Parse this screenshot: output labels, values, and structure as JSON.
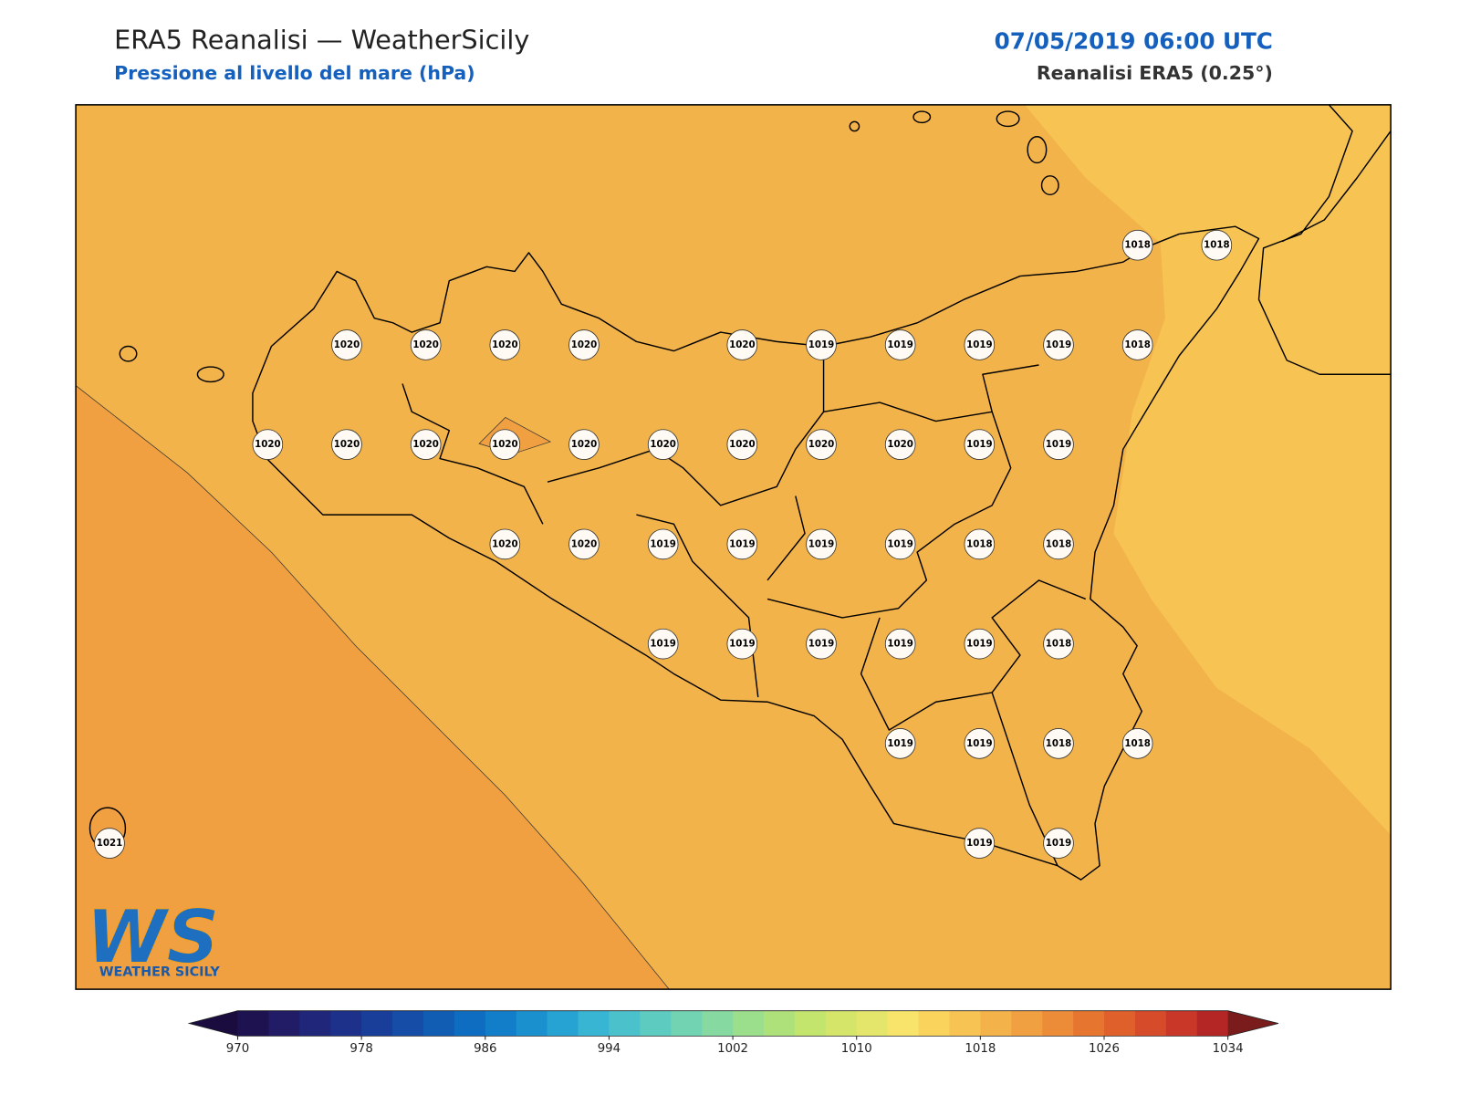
{
  "header": {
    "title": "ERA5 Reanalisi — WeatherSicily",
    "subtitle": "Pressione al livello del mare (hPa)",
    "datetime": "07/05/2019 06:00 UTC",
    "source": "Reanalisi ERA5 (0.25°)"
  },
  "stations": [
    1018,
    1018,
    1020,
    1020,
    1020,
    1020,
    1020,
    1019,
    1019,
    1019,
    1019,
    1018,
    1020,
    1020,
    1020,
    1020,
    1020,
    1020,
    1020,
    1020,
    1020,
    1019,
    1019,
    1020,
    1020,
    1019,
    1019,
    1019,
    1019,
    1018,
    1018,
    1019,
    1019,
    1019,
    1019,
    1019,
    1018,
    1019,
    1019,
    1018,
    1018,
    1021,
    1019,
    1019
  ],
  "colorbar": {
    "ticks": [
      970,
      978,
      986,
      994,
      1002,
      1010,
      1018,
      1026,
      1034
    ],
    "colors": [
      "#1e1250",
      "#221b66",
      "#20267a",
      "#1d318a",
      "#193e99",
      "#154da7",
      "#115db4",
      "#0e6dc0",
      "#127ec9",
      "#1b90cf",
      "#27a3d3",
      "#37b5d2",
      "#4bc2cb",
      "#5ecbc0",
      "#72d3b2",
      "#86d9a0",
      "#9bde8c",
      "#afe17b",
      "#c3e46d",
      "#d5e56a",
      "#e4e66c",
      "#f8e46a",
      "#fad35d",
      "#f7c453",
      "#f4b34a",
      "#f0a041",
      "#ec8c38",
      "#e6762f",
      "#e0602b",
      "#d64b29",
      "#c83727",
      "#b42525"
    ],
    "extend_colors": [
      "#1a0c3e",
      "#7a1c1c"
    ]
  },
  "logo": {
    "mark": "WS",
    "text": "WEATHER SICILY"
  }
}
